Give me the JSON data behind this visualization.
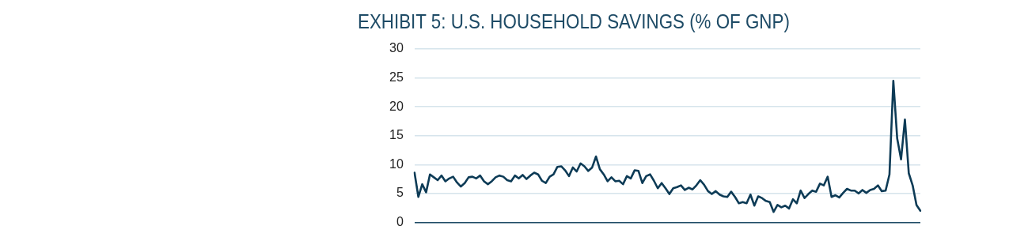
{
  "chart_data": {
    "type": "line",
    "title": "EXHIBIT 5: U.S. HOUSEHOLD SAVINGS (% OF GNP)",
    "categories": [
      null,
      null,
      null,
      null,
      null,
      null,
      null,
      null,
      null,
      null,
      null,
      null,
      null,
      null,
      null,
      null,
      null,
      null,
      null,
      null,
      null,
      null,
      null,
      null,
      null,
      null,
      null,
      null,
      null,
      null,
      null,
      null,
      null,
      null,
      null,
      null,
      null,
      null,
      null,
      null,
      null,
      null,
      null,
      null,
      null,
      null,
      null,
      null,
      null,
      null,
      null,
      null,
      null,
      null,
      null,
      null,
      null,
      null,
      null,
      null,
      null,
      null,
      null,
      null,
      null,
      null,
      null,
      null,
      null,
      null,
      null,
      null,
      null,
      null,
      null,
      null,
      null,
      null,
      null,
      null,
      null,
      null,
      null,
      null,
      null,
      null,
      null,
      null,
      null,
      null,
      null,
      null,
      null,
      null,
      null,
      null,
      null,
      null,
      null,
      null,
      null,
      null,
      null,
      null,
      null,
      null,
      null,
      null,
      null,
      null,
      null,
      null,
      null,
      null,
      null,
      null,
      null,
      null,
      null,
      null,
      null,
      null,
      null,
      null,
      null,
      null,
      null,
      null,
      null,
      null,
      null,
      null
    ],
    "series": [
      {
        "color": "#0d3b56",
        "values": [
          8.6,
          4.4,
          6.6,
          5.2,
          8.3,
          7.8,
          7.3,
          8.1,
          7.1,
          7.6,
          7.9,
          6.9,
          6.2,
          6.8,
          7.8,
          7.9,
          7.6,
          8.1,
          7.1,
          6.6,
          7.1,
          7.8,
          8.1,
          7.9,
          7.3,
          7.1,
          8.1,
          7.6,
          8.2,
          7.5,
          8.1,
          8.6,
          8.3,
          7.2,
          6.8,
          7.9,
          8.3,
          9.6,
          9.7,
          9.0,
          8.0,
          9.5,
          8.8,
          10.2,
          9.7,
          8.9,
          9.5,
          11.4,
          9.2,
          8.3,
          7.1,
          7.8,
          7.1,
          7.2,
          6.6,
          8.0,
          7.6,
          9.0,
          8.9,
          6.8,
          8.0,
          8.3,
          7.2,
          5.9,
          6.8,
          5.9,
          4.9,
          5.9,
          6.1,
          6.4,
          5.6,
          6.0,
          5.7,
          6.4,
          7.3,
          6.5,
          5.4,
          4.9,
          5.4,
          4.8,
          4.5,
          4.4,
          5.3,
          4.4,
          3.3,
          3.5,
          3.3,
          4.8,
          2.9,
          4.5,
          4.2,
          3.7,
          3.5,
          1.8,
          3.0,
          2.6,
          2.9,
          2.4,
          4.0,
          3.3,
          5.5,
          4.2,
          4.9,
          5.5,
          5.3,
          6.7,
          6.4,
          7.9,
          4.4,
          4.7,
          4.3,
          5.1,
          5.8,
          5.5,
          5.5,
          5.0,
          5.6,
          5.1,
          5.6,
          5.8,
          6.4,
          5.4,
          5.5,
          8.3,
          24.5,
          14.5,
          10.9,
          17.8,
          8.5,
          6.4,
          3.0,
          2.0
        ]
      }
    ],
    "ylim": [
      0,
      30
    ],
    "yticks": [
      0,
      5,
      10,
      15,
      20,
      25,
      30
    ],
    "grid": "y",
    "tick_labels": "y",
    "marker": "none",
    "line_style": "solid",
    "legend": false
  }
}
